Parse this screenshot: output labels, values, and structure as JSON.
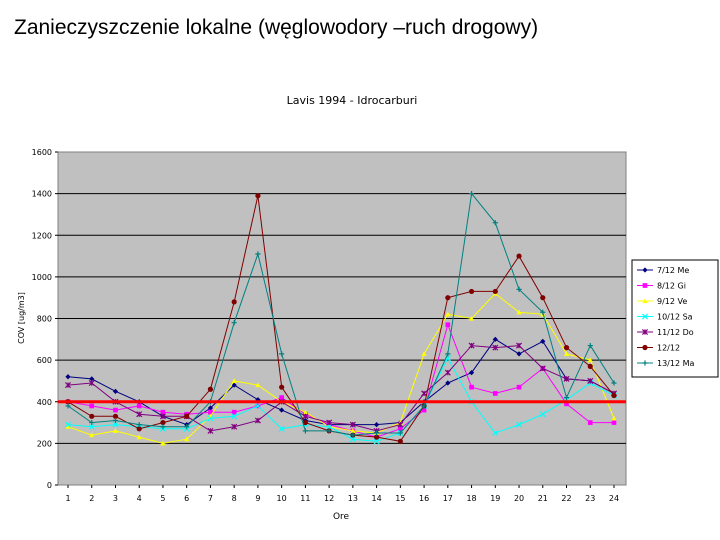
{
  "slide": {
    "title": "Zanieczyszczenie lokalne (węglowodory –ruch drogowy)"
  },
  "colors": {
    "plot_bg": "#c0c0c0",
    "grid": "#000000",
    "threshold": "#ff0000"
  },
  "chart_data": {
    "type": "line",
    "title": "Lavis 1994 - Idrocarburi",
    "xlabel": "Ore",
    "ylabel": "COV [ug/m3]",
    "x": [
      1,
      2,
      3,
      4,
      5,
      6,
      7,
      8,
      9,
      10,
      11,
      12,
      13,
      14,
      15,
      16,
      17,
      18,
      19,
      20,
      21,
      22,
      23,
      24
    ],
    "ylim": [
      0,
      1600
    ],
    "yticks": [
      0,
      200,
      400,
      600,
      800,
      1000,
      1200,
      1400,
      1600
    ],
    "grid": true,
    "legend_position": "right",
    "threshold": {
      "value": 400,
      "color": "#ff0000"
    },
    "series": [
      {
        "name": "7/12 Me",
        "color": "#000080",
        "marker": "diamond",
        "values": [
          520,
          510,
          450,
          400,
          330,
          290,
          370,
          480,
          410,
          360,
          310,
          290,
          290,
          290,
          300,
          400,
          490,
          540,
          700,
          630,
          690,
          510,
          500,
          440
        ]
      },
      {
        "name": "8/12 Gi",
        "color": "#ff00ff",
        "marker": "square",
        "values": [
          400,
          380,
          360,
          380,
          350,
          340,
          350,
          350,
          380,
          420,
          340,
          290,
          260,
          230,
          270,
          360,
          770,
          470,
          440,
          470,
          560,
          390,
          300,
          300
        ]
      },
      {
        "name": "9/12 Ve",
        "color": "#ffff00",
        "marker": "triangle",
        "values": [
          280,
          240,
          260,
          230,
          200,
          220,
          330,
          500,
          480,
          400,
          350,
          280,
          260,
          250,
          300,
          630,
          820,
          800,
          920,
          830,
          820,
          630,
          600,
          320
        ]
      },
      {
        "name": "10/12 Sa",
        "color": "#00ffff",
        "marker": "x",
        "values": [
          290,
          280,
          290,
          280,
          270,
          270,
          320,
          330,
          380,
          270,
          290,
          280,
          220,
          210,
          250,
          380,
          610,
          400,
          250,
          290,
          340,
          410,
          490,
          430
        ]
      },
      {
        "name": "11/12 Do",
        "color": "#800080",
        "marker": "star",
        "values": [
          480,
          490,
          400,
          340,
          330,
          330,
          260,
          280,
          310,
          400,
          330,
          300,
          290,
          260,
          290,
          440,
          540,
          670,
          660,
          670,
          560,
          510,
          500,
          440
        ]
      },
      {
        "name": "12/12",
        "color": "#800000",
        "marker": "circle",
        "values": [
          400,
          330,
          330,
          270,
          300,
          330,
          460,
          880,
          1390,
          470,
          300,
          260,
          240,
          230,
          210,
          380,
          900,
          930,
          930,
          1100,
          900,
          660,
          570,
          430
        ]
      },
      {
        "name": "13/12 Ma",
        "color": "#008080",
        "marker": "plus",
        "values": [
          380,
          300,
          310,
          290,
          280,
          280,
          400,
          780,
          1110,
          630,
          260,
          260,
          240,
          250,
          250,
          380,
          630,
          1400,
          1260,
          940,
          830,
          420,
          670,
          490
        ]
      }
    ]
  }
}
